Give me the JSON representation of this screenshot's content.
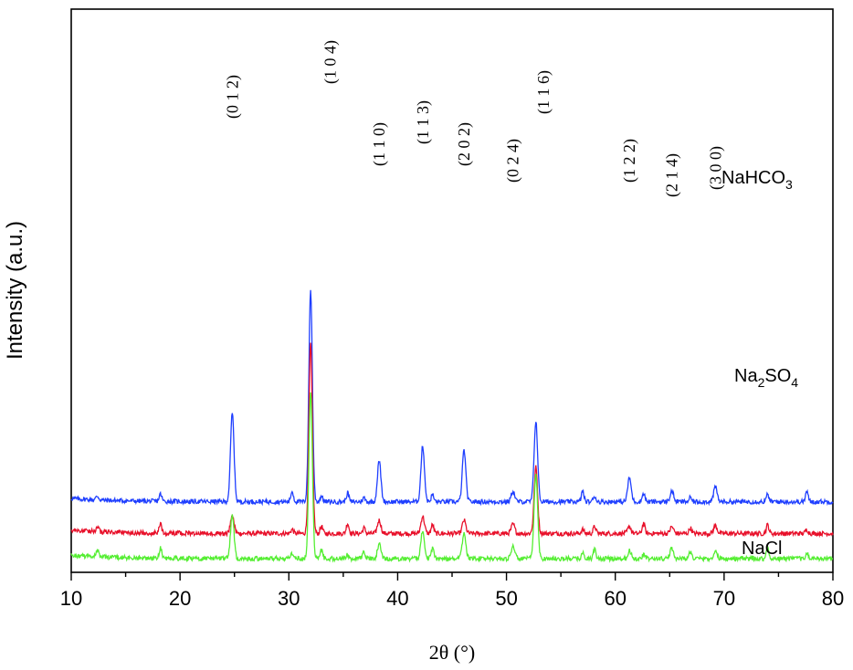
{
  "chart_data": {
    "type": "line",
    "xlabel": "2θ (°)",
    "ylabel": "Intensity (a.u.)",
    "xlim": [
      10,
      80
    ],
    "x_ticks": [
      "10",
      "20",
      "30",
      "40",
      "50",
      "60",
      "70",
      "80"
    ],
    "y_ticks_labeled": false,
    "grid": false,
    "legend": "labels beside curves",
    "peak_positions": [
      24.8,
      32.0,
      38.3,
      42.3,
      46.1,
      50.6,
      52.7,
      61.3,
      65.2,
      69.2
    ],
    "series": [
      {
        "name": "NaHCO3",
        "label_base": "NaHCO",
        "label_sub": "3",
        "color": "#1f3fff",
        "baseline": 0.43,
        "peak_heights": [
          0.67,
          1.6,
          0.31,
          0.42,
          0.39,
          0.08,
          0.61,
          0.18,
          0.08,
          0.11
        ]
      },
      {
        "name": "Na2SO4",
        "label_base": "Na",
        "label_sub": "2",
        "label_mid": "SO",
        "label_sub2": "4",
        "color": "#e8102a",
        "baseline": 0.19,
        "peak_heights": [
          0.14,
          1.43,
          0.1,
          0.13,
          0.1,
          0.07,
          0.5,
          0.05,
          0.05,
          0.06
        ]
      },
      {
        "name": "NaCl",
        "label_base": "NaCl",
        "color": "#55ee33",
        "baseline": 0.0,
        "peak_heights": [
          0.33,
          1.26,
          0.11,
          0.22,
          0.2,
          0.1,
          0.64,
          0.06,
          0.08,
          0.05
        ]
      }
    ],
    "annotations": [
      {
        "text": "(0 1 2)",
        "x": 24.8
      },
      {
        "text": "(1 0 4)",
        "x": 33.8
      },
      {
        "text": "(1 1 0)",
        "x": 38.3
      },
      {
        "text": "(1 1 3)",
        "x": 42.3
      },
      {
        "text": "(2 0 2)",
        "x": 46.1
      },
      {
        "text": "(0 2 4)",
        "x": 50.6
      },
      {
        "text": "(1 1 6)",
        "x": 53.4
      },
      {
        "text": "(1 2 2)",
        "x": 61.3
      },
      {
        "text": "(2 1 4)",
        "x": 65.2
      },
      {
        "text": "(3 0 0)",
        "x": 69.2
      }
    ]
  }
}
